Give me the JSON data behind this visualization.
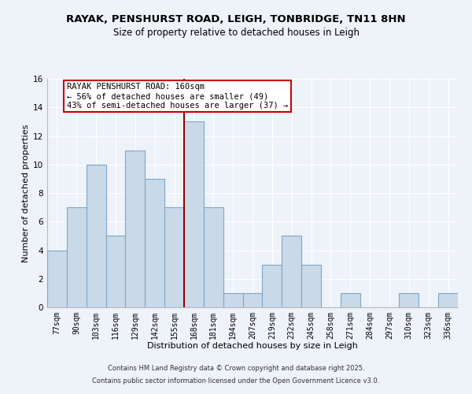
{
  "title": "RAYAK, PENSHURST ROAD, LEIGH, TONBRIDGE, TN11 8HN",
  "subtitle": "Size of property relative to detached houses in Leigh",
  "xlabel": "Distribution of detached houses by size in Leigh",
  "ylabel": "Number of detached properties",
  "bins": [
    "77sqm",
    "90sqm",
    "103sqm",
    "116sqm",
    "129sqm",
    "142sqm",
    "155sqm",
    "168sqm",
    "181sqm",
    "194sqm",
    "207sqm",
    "219sqm",
    "232sqm",
    "245sqm",
    "258sqm",
    "271sqm",
    "284sqm",
    "297sqm",
    "310sqm",
    "323sqm",
    "336sqm"
  ],
  "values": [
    4,
    7,
    10,
    5,
    11,
    9,
    7,
    13,
    7,
    1,
    1,
    3,
    5,
    3,
    0,
    1,
    0,
    0,
    1,
    0,
    1
  ],
  "bar_color": "#c9d9e8",
  "bar_edge_color": "#7ea8c9",
  "highlight_line_index": 7,
  "highlight_line_color": "#990000",
  "background_color": "#eef2f9",
  "grid_color": "#ffffff",
  "annotation_line1": "RAYAK PENSHURST ROAD: 160sqm",
  "annotation_line2": "← 56% of detached houses are smaller (49)",
  "annotation_line3": "43% of semi-detached houses are larger (37) →",
  "annotation_box_color": "#cc0000",
  "footer_line1": "Contains HM Land Registry data © Crown copyright and database right 2025.",
  "footer_line2": "Contains public sector information licensed under the Open Government Licence v3.0.",
  "ylim": [
    0,
    16
  ],
  "yticks": [
    0,
    2,
    4,
    6,
    8,
    10,
    12,
    14,
    16
  ],
  "title_fontsize": 9.5,
  "subtitle_fontsize": 8.5,
  "axis_label_fontsize": 8,
  "tick_fontsize": 7,
  "annotation_fontsize": 7.5,
  "footer_fontsize": 6
}
